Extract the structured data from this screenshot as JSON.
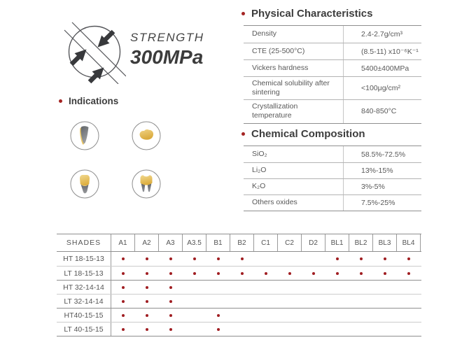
{
  "strength": {
    "label": "STRENGTH",
    "value": "300MPa",
    "icon": "compressive-strength-icon"
  },
  "indications": {
    "title": "Indications",
    "items": [
      {
        "icon": "veneer-icon"
      },
      {
        "icon": "inlay-onlay-icon"
      },
      {
        "icon": "anterior-crown-icon"
      },
      {
        "icon": "molar-crown-icon"
      }
    ]
  },
  "physical": {
    "title": "Physical Characteristics",
    "rows": [
      {
        "label": "Density",
        "value": "2.4-2.7g/cm³"
      },
      {
        "label": "CTE (25-500°C)",
        "value": "(8.5-11) x10⁻⁶K⁻¹"
      },
      {
        "label": "Vickers hardness",
        "value": "5400±400MPa"
      },
      {
        "label": "Chemical solubility after sintering",
        "value": "<100μg/cm²"
      },
      {
        "label": "Crystallization temperature",
        "value": "840-850°C"
      }
    ]
  },
  "chemical": {
    "title": "Chemical Composition",
    "rows": [
      {
        "label": "SiO₂",
        "value": "58.5%-72.5%"
      },
      {
        "label": "Li₂O",
        "value": "13%-15%"
      },
      {
        "label": "K₂O",
        "value": "3%-5%"
      },
      {
        "label": "Others oxides",
        "value": "7.5%-25%"
      }
    ]
  },
  "shades_table": {
    "header": "SHADES",
    "columns": [
      "A1",
      "A2",
      "A3",
      "A3.5",
      "B1",
      "B2",
      "C1",
      "C2",
      "D2",
      "BL1",
      "BL2",
      "BL3",
      "BL4"
    ],
    "rows": [
      {
        "label": "HT 18-15-13",
        "dots": [
          1,
          1,
          1,
          1,
          1,
          1,
          0,
          0,
          0,
          1,
          1,
          1,
          1
        ]
      },
      {
        "label": "LT 18-15-13",
        "dots": [
          1,
          1,
          1,
          1,
          1,
          1,
          1,
          1,
          1,
          1,
          1,
          1,
          1
        ]
      },
      {
        "label": "HT 32-14-14",
        "dots": [
          1,
          1,
          1,
          0,
          0,
          0,
          0,
          0,
          0,
          0,
          0,
          0,
          0
        ]
      },
      {
        "label": "LT 32-14-14",
        "dots": [
          1,
          1,
          1,
          0,
          0,
          0,
          0,
          0,
          0,
          0,
          0,
          0,
          0
        ]
      },
      {
        "label": "HT40-15-15",
        "dots": [
          1,
          1,
          1,
          0,
          1,
          0,
          0,
          0,
          0,
          0,
          0,
          0,
          0
        ]
      },
      {
        "label": "LT 40-15-15",
        "dots": [
          1,
          1,
          1,
          0,
          1,
          0,
          0,
          0,
          0,
          0,
          0,
          0,
          0
        ]
      }
    ],
    "group_breaks": [
      2,
      4
    ]
  },
  "colors": {
    "accent_red": "#a42423",
    "dot_red": "#a01e22",
    "tooth_gold": "#e2b34c",
    "tooth_gray": "#75787c"
  }
}
